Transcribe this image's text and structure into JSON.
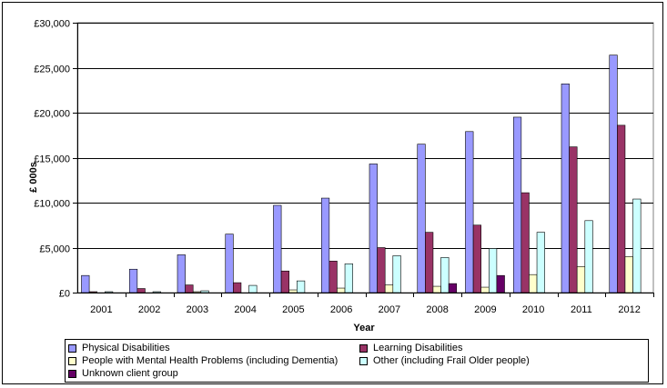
{
  "chart_data": {
    "type": "bar",
    "title": "",
    "xlabel": "Year",
    "ylabel": "£ 000s",
    "categories": [
      "2001",
      "2002",
      "2003",
      "2004",
      "2005",
      "2006",
      "2007",
      "2008",
      "2009",
      "2010",
      "2011",
      "2012"
    ],
    "ylim": [
      0,
      30000
    ],
    "yticks": [
      0,
      5000,
      10000,
      15000,
      20000,
      25000,
      30000
    ],
    "ytick_labels": [
      "£0",
      "£5,000",
      "£10,000",
      "£15,000",
      "£20,000",
      "£25,000",
      "£30,000"
    ],
    "grid": true,
    "legend_position": "bottom",
    "series": [
      {
        "name": "Physical Disabilities",
        "color": "#9999ff",
        "values": [
          1900,
          2600,
          4200,
          6500,
          9700,
          10500,
          14300,
          16500,
          17900,
          19500,
          23200,
          26400
        ]
      },
      {
        "name": "Learning Disabilities",
        "color": "#993366",
        "values": [
          100,
          450,
          850,
          1100,
          2400,
          3500,
          5000,
          6700,
          7500,
          11100,
          16200,
          18600
        ]
      },
      {
        "name": "People with Mental Health Problems (including Dementia)",
        "color": "#ffffcc",
        "values": [
          0,
          0,
          100,
          0,
          300,
          500,
          850,
          700,
          600,
          2000,
          2900,
          4000
        ]
      },
      {
        "name": "Other (including Frail Older people)",
        "color": "#ccffff",
        "values": [
          100,
          100,
          200,
          800,
          1300,
          3200,
          4100,
          3900,
          4900,
          6700,
          8000,
          10400
        ]
      },
      {
        "name": "Unknown client group",
        "color": "#660066",
        "values": [
          0,
          0,
          0,
          0,
          0,
          0,
          0,
          1000,
          1900,
          0,
          0,
          0
        ]
      }
    ]
  }
}
